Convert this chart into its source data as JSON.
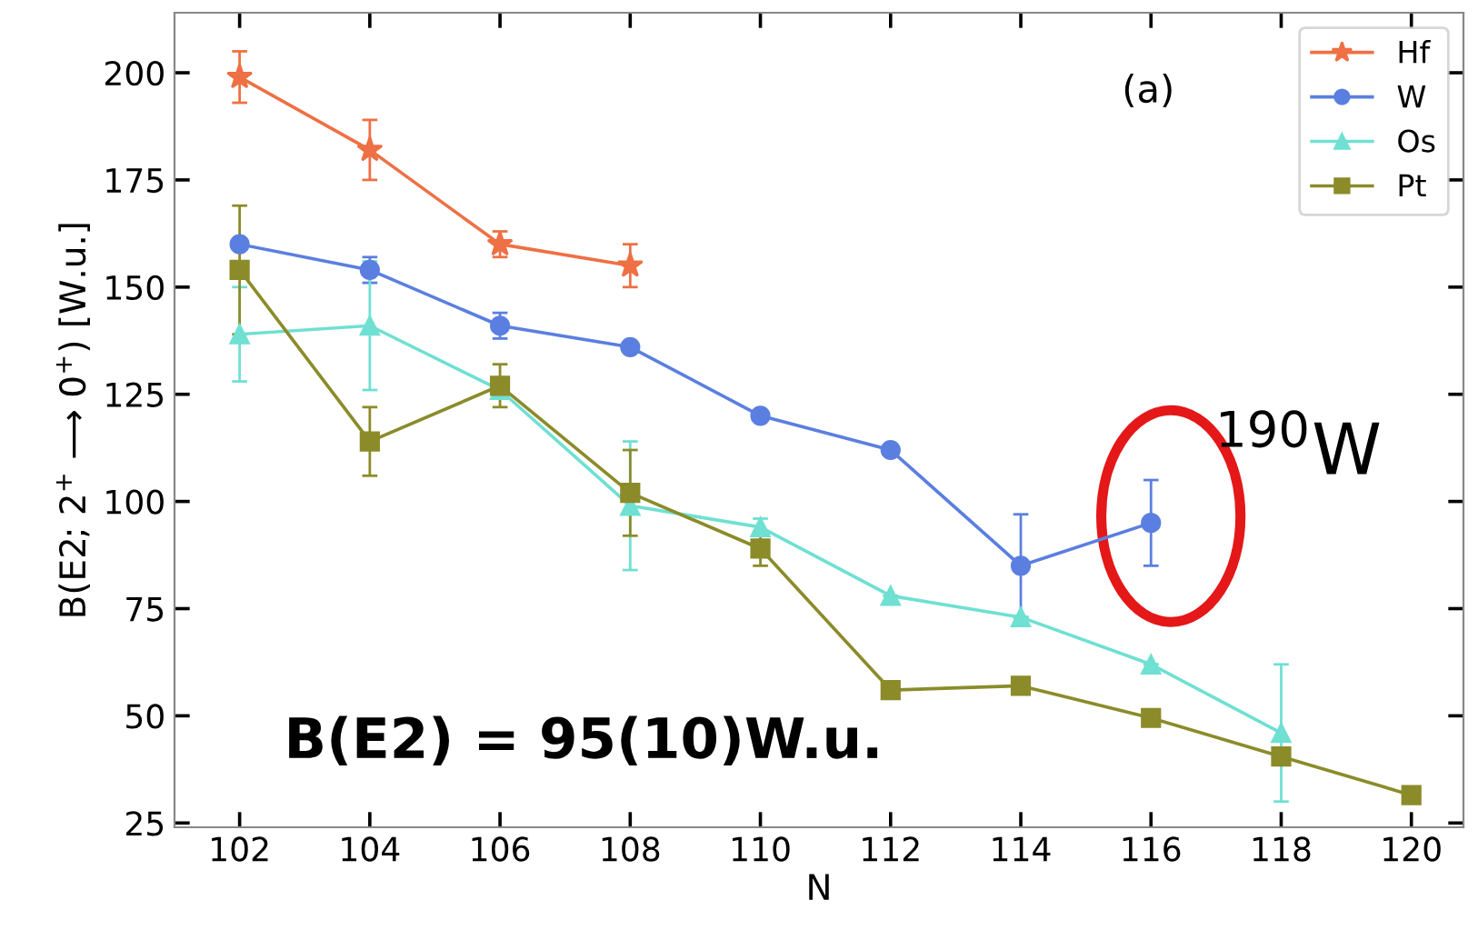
{
  "chart_data": {
    "type": "line",
    "xlabel": "N",
    "ylabel": "B(E2; 2$^{+}$ ⟶ 0$^{+}$) [W.u.]",
    "xlim": [
      101,
      120.8
    ],
    "xticks": [
      102,
      104,
      106,
      108,
      110,
      112,
      114,
      116,
      118,
      120
    ],
    "ylim": [
      24,
      214
    ],
    "yticks": [
      25,
      50,
      75,
      100,
      125,
      150,
      175,
      200
    ],
    "grid": false,
    "legend": "top right",
    "series": [
      {
        "name": "Hf",
        "color": "#ee7044",
        "marker": "star",
        "x": [
          102,
          104,
          106,
          108
        ],
        "values": [
          199,
          182,
          160,
          155
        ],
        "errors": [
          6,
          7,
          3,
          5
        ]
      },
      {
        "name": "W",
        "color": "#5b7fe0",
        "marker": "circle",
        "x": [
          102,
          104,
          106,
          108,
          110,
          112,
          114,
          116
        ],
        "values": [
          160,
          154,
          141,
          136,
          120,
          112,
          85,
          95
        ],
        "errors": [
          null,
          3,
          3,
          null,
          null,
          null,
          12,
          10
        ]
      },
      {
        "name": "Os",
        "color": "#6fe0d2",
        "marker": "triangle",
        "x": [
          102,
          104,
          106,
          108,
          110,
          112,
          114,
          116,
          118
        ],
        "values": [
          139,
          141,
          126,
          99,
          94,
          78,
          73,
          62,
          46
        ],
        "errors": [
          11,
          15,
          null,
          15,
          2,
          null,
          null,
          null,
          16
        ]
      },
      {
        "name": "Pt",
        "color": "#8b8b2a",
        "marker": "square",
        "x": [
          102,
          104,
          106,
          108,
          110,
          112,
          114,
          116,
          118,
          120
        ],
        "values": [
          154,
          114,
          127,
          102,
          89,
          56,
          57,
          49.5,
          40.5,
          31.5
        ],
        "errors": [
          15,
          8,
          5,
          10,
          4,
          2,
          null,
          null,
          null,
          null
        ]
      }
    ],
    "annotations": [
      {
        "text": "(a)"
      },
      {
        "text": "$^{190}$W"
      },
      {
        "text": "B(E2) = 95(10)W.u."
      }
    ]
  }
}
